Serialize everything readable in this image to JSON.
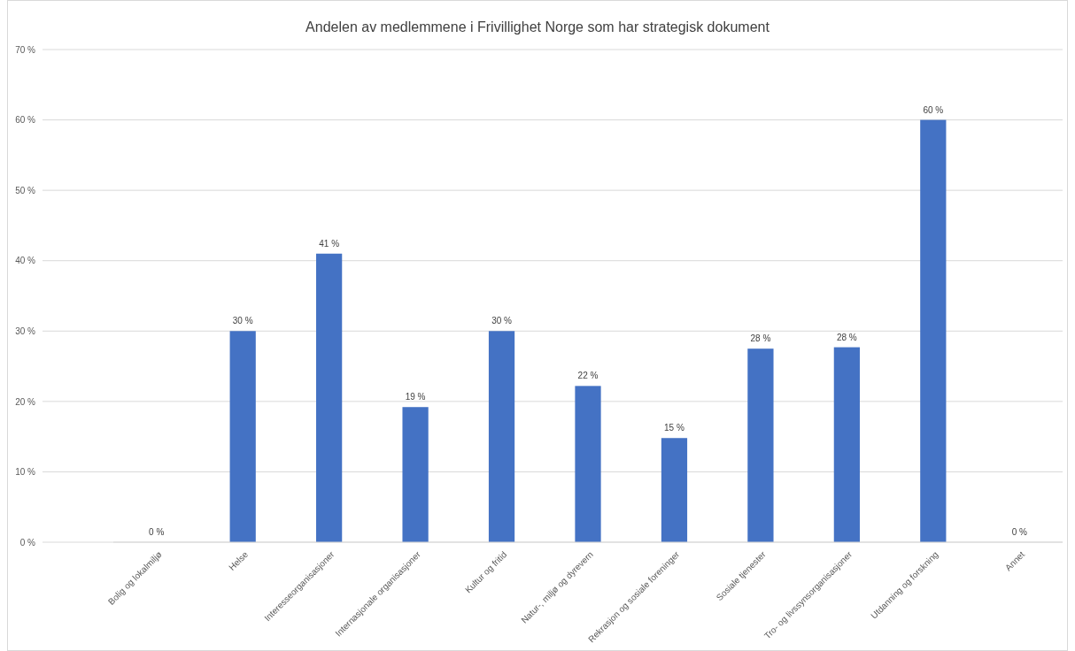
{
  "chart_data": {
    "type": "bar",
    "title": "Andelen av medlemmene i Frivillighet Norge som har strategisk dokument",
    "categories": [
      "Bolig og lokalmiljø",
      "Helse",
      "Interesseorganisasjoner",
      "Internasjonale organisasjoner",
      "Kultur og fritid",
      "Natur-, miljø og dyrevern",
      "Rekrasjon og sosiale foreninger",
      "Sosiale tjenester",
      "Tro- og livssynsorganisasjoner",
      "Utdanning og forskning",
      "Annet"
    ],
    "values": [
      0,
      30,
      41,
      19.2,
      30,
      22.2,
      14.8,
      27.5,
      27.7,
      60,
      0
    ],
    "value_labels": [
      "0 %",
      "30 %",
      "41 %",
      "19 %",
      "30 %",
      "22 %",
      "15 %",
      "28 %",
      "28 %",
      "60 %",
      "0 %"
    ],
    "color": "#4472c4",
    "ylim": [
      0,
      70
    ],
    "yticks": [
      {
        "value": 0,
        "label": "0 %"
      },
      {
        "value": 10,
        "label": "10 %"
      },
      {
        "value": 20,
        "label": "20 %"
      },
      {
        "value": 30,
        "label": "30 %"
      },
      {
        "value": 40,
        "label": "40 %"
      },
      {
        "value": 50,
        "label": "50 %"
      },
      {
        "value": 60,
        "label": "60 %"
      },
      {
        "value": 70,
        "label": "70 %"
      }
    ],
    "grid": "y"
  }
}
